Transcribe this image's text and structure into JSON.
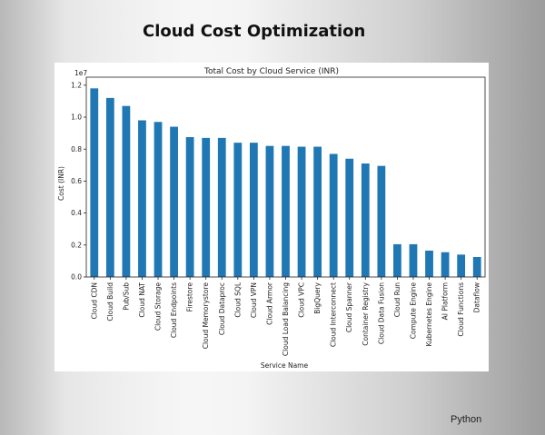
{
  "page": {
    "title": "Cloud Cost Optimization",
    "footer": "Python"
  },
  "chart_data": {
    "type": "bar",
    "title": "Total Cost by Cloud Service (INR)",
    "xlabel": "Service Name",
    "ylabel": "Cost (INR)",
    "y_scale_label": "1e7",
    "ylim": [
      0,
      1.25
    ],
    "yticks": [
      0.0,
      0.2,
      0.4,
      0.6,
      0.8,
      1.0,
      1.2
    ],
    "ytick_labels": [
      "0.0",
      "0.2",
      "0.4",
      "0.6",
      "0.8",
      "1.0",
      "1.2"
    ],
    "bar_color": "#1f77b4",
    "grid": false,
    "categories": [
      "Cloud CDN",
      "Cloud Build",
      "Pub/Sub",
      "Cloud NAT",
      "Cloud Storage",
      "Cloud Endpoints",
      "Firestore",
      "Cloud Memorystore",
      "Cloud Dataproc",
      "Cloud SQL",
      "Cloud VPN",
      "Cloud Armor",
      "Cloud Load Balancing",
      "Cloud VPC",
      "BigQuery",
      "Cloud Interconnect",
      "Cloud Spanner",
      "Container Registry",
      "Cloud Data Fusion",
      "Cloud Run",
      "Compute Engine",
      "Kubernetes Engine",
      "AI Platform",
      "Cloud Functions",
      "Dataflow"
    ],
    "values": [
      1.18,
      1.12,
      1.07,
      0.98,
      0.97,
      0.94,
      0.875,
      0.87,
      0.87,
      0.84,
      0.84,
      0.82,
      0.82,
      0.815,
      0.815,
      0.77,
      0.74,
      0.71,
      0.695,
      0.205,
      0.205,
      0.165,
      0.155,
      0.14,
      0.125
    ]
  }
}
